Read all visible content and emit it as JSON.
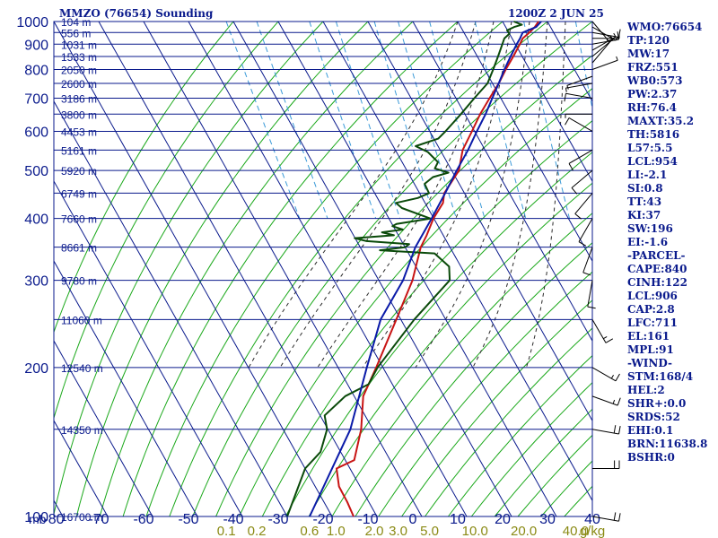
{
  "header": {
    "station": "MMZO (76654) Sounding",
    "time": "1200Z  2 JUN 25"
  },
  "colors": {
    "grid": "#0a1a8c",
    "dry_adiabat": "#1aa81a",
    "moist_adiabat": "#2a2a2a",
    "mixing_ratio": "#3a9ad8",
    "temperature": "#c81414",
    "dewpoint": "#0a4a0a",
    "parcel": "#0a1aa8",
    "text": "#0a1a8c",
    "mixing_label": "#8a8a14"
  },
  "params": [
    "WMO:76654",
    "TP:120",
    "MW:17",
    "FRZ:551",
    "WB0:573",
    "PW:2.37",
    "RH:76.4",
    "MAXT:35.2",
    "TH:5816",
    "L57:5.5",
    "LCL:954",
    "LI:-2.1",
    "SI:0.8",
    "TT:43",
    "KI:37",
    "SW:196",
    "EI:-1.6",
    "-PARCEL-",
    "CAPE:840",
    "CINH:122",
    "LCL:906",
    "CAP:2.8",
    "LFC:711",
    "EL:161",
    "MPL:91",
    "-WIND-",
    "STM:168/4",
    "HEL:2",
    "SHR+:0.0",
    "SRDS:52",
    "EHI:0.1",
    "BRN:11638.8",
    "BSHR:0"
  ],
  "chart_data": {
    "type": "line",
    "title": "MMZO (76654) Sounding",
    "pressure_axis": {
      "label": "mb",
      "scale": "log",
      "range": [
        1000,
        100
      ],
      "levels": [
        1000,
        900,
        800,
        700,
        600,
        500,
        400,
        300,
        200,
        100
      ]
    },
    "secondary_levels": [
      {
        "p": 1000,
        "label": "104 m"
      },
      {
        "p": 950,
        "label": "556 m"
      },
      {
        "p": 900,
        "label": "1031 m"
      },
      {
        "p": 850,
        "label": "1533 m"
      },
      {
        "p": 800,
        "label": "2050 m"
      },
      {
        "p": 750,
        "label": "2600 m"
      },
      {
        "p": 700,
        "label": "3186 m"
      },
      {
        "p": 650,
        "label": "3800 m"
      },
      {
        "p": 600,
        "label": "4453 m"
      },
      {
        "p": 550,
        "label": "5161 m"
      },
      {
        "p": 500,
        "label": "5920 m"
      },
      {
        "p": 450,
        "label": "6749 m"
      },
      {
        "p": 400,
        "label": "7660 m"
      },
      {
        "p": 350,
        "label": "8661 m"
      },
      {
        "p": 300,
        "label": "9780 m"
      },
      {
        "p": 250,
        "label": "11060 m"
      },
      {
        "p": 200,
        "label": "12540 m"
      },
      {
        "p": 150,
        "label": "14350 m"
      },
      {
        "p": 100,
        "label": "16700 m"
      }
    ],
    "temperature_axis": {
      "label": "C",
      "range": [
        -80,
        40
      ],
      "ticks": [
        -80,
        -70,
        -60,
        -50,
        -40,
        -30,
        -20,
        -10,
        0,
        10,
        20,
        30,
        40
      ]
    },
    "mixing_ratio_labels": [
      "0.1",
      "0.2",
      "0.6",
      "1.0",
      "2.0",
      "3.0",
      "5.0",
      "10.0",
      "20.0",
      "40.0",
      "g/kg"
    ],
    "mixing_ratio_values": [
      0.1,
      0.2,
      0.6,
      1,
      2,
      3,
      5,
      10,
      20,
      40
    ],
    "series": [
      {
        "key": "temperature",
        "points": [
          [
            1000,
            28
          ],
          [
            975,
            26.5
          ],
          [
            950,
            24.6
          ],
          [
            925,
            22.4
          ],
          [
            900,
            21
          ],
          [
            850,
            18
          ],
          [
            800,
            14.7
          ],
          [
            750,
            11.4
          ],
          [
            700,
            7.5
          ],
          [
            650,
            3.4
          ],
          [
            600,
            -0.6
          ],
          [
            550,
            -5
          ],
          [
            500,
            -8.4
          ],
          [
            450,
            -14.5
          ],
          [
            430,
            -16
          ],
          [
            400,
            -20.1
          ],
          [
            370,
            -23.7
          ],
          [
            350,
            -26.5
          ],
          [
            320,
            -30
          ],
          [
            300,
            -32.5
          ],
          [
            250,
            -41
          ],
          [
            200,
            -51.5
          ],
          [
            175,
            -58
          ],
          [
            150,
            -62.6
          ],
          [
            130,
            -68
          ],
          [
            125,
            -73
          ],
          [
            115,
            -74.7
          ],
          [
            107,
            -74.8
          ],
          [
            100,
            -75.2
          ]
        ]
      },
      {
        "key": "dewpoint",
        "points": [
          [
            1000,
            22.5
          ],
          [
            985,
            23.9
          ],
          [
            975,
            21.9
          ],
          [
            960,
            19.9
          ],
          [
            945,
            20
          ],
          [
            925,
            18.3
          ],
          [
            900,
            17.1
          ],
          [
            850,
            14.6
          ],
          [
            800,
            11.9
          ],
          [
            750,
            8.9
          ],
          [
            700,
            4.1
          ],
          [
            650,
            -0.9
          ],
          [
            600,
            -6.5
          ],
          [
            580,
            -9
          ],
          [
            560,
            -15
          ],
          [
            545,
            -13
          ],
          [
            520,
            -12
          ],
          [
            505,
            -13.5
          ],
          [
            495,
            -11
          ],
          [
            485,
            -15
          ],
          [
            470,
            -17.7
          ],
          [
            450,
            -17.9
          ],
          [
            440,
            -21
          ],
          [
            430,
            -26.5
          ],
          [
            420,
            -25.8
          ],
          [
            400,
            -20.8
          ],
          [
            390,
            -29
          ],
          [
            386,
            -30.2
          ],
          [
            380,
            -28.3
          ],
          [
            375,
            -33.3
          ],
          [
            370,
            -31
          ],
          [
            365,
            -40.1
          ],
          [
            360,
            -37.8
          ],
          [
            355,
            -28.7
          ],
          [
            350,
            -30
          ],
          [
            345,
            -36
          ],
          [
            340,
            -24.2
          ],
          [
            320,
            -22.6
          ],
          [
            300,
            -24.2
          ],
          [
            250,
            -37
          ],
          [
            200,
            -51.2
          ],
          [
            185,
            -55.3
          ],
          [
            175,
            -62
          ],
          [
            160,
            -69
          ],
          [
            150,
            -70.2
          ],
          [
            135,
            -74.5
          ],
          [
            125,
            -80
          ],
          [
            100,
            -90
          ]
        ]
      },
      {
        "key": "parcel",
        "points": [
          [
            1000,
            28.6
          ],
          [
            975,
            26.8
          ],
          [
            950,
            23.1
          ],
          [
            925,
            21.8
          ],
          [
            900,
            20.3
          ],
          [
            850,
            17.4
          ],
          [
            800,
            14.4
          ],
          [
            750,
            11.4
          ],
          [
            700,
            8.1
          ],
          [
            650,
            4.6
          ],
          [
            600,
            0.5
          ],
          [
            550,
            -3.8
          ],
          [
            500,
            -8.9
          ],
          [
            450,
            -14.3
          ],
          [
            400,
            -20.5
          ],
          [
            350,
            -27.7
          ],
          [
            300,
            -34.6
          ],
          [
            250,
            -44.5
          ],
          [
            200,
            -53.6
          ],
          [
            150,
            -65
          ],
          [
            100,
            -85
          ]
        ]
      }
    ],
    "winds": [
      {
        "p": 1000,
        "dir": 140,
        "spd": 5
      },
      {
        "p": 975,
        "dir": 120,
        "spd": 5
      },
      {
        "p": 950,
        "dir": 100,
        "spd": 10
      },
      {
        "p": 925,
        "dir": 90,
        "spd": 5
      },
      {
        "p": 900,
        "dir": 80,
        "spd": 10
      },
      {
        "p": 875,
        "dir": 60,
        "spd": 5
      },
      {
        "p": 850,
        "dir": 50,
        "spd": 5
      },
      {
        "p": 825,
        "dir": 40,
        "spd": 5
      },
      {
        "p": 800,
        "dir": 70,
        "spd": 5
      },
      {
        "p": 775,
        "dir": 250,
        "spd": 5
      },
      {
        "p": 750,
        "dir": 260,
        "spd": 5
      },
      {
        "p": 700,
        "dir": 280,
        "spd": 10
      },
      {
        "p": 650,
        "dir": 270,
        "spd": 5
      },
      {
        "p": 600,
        "dir": 300,
        "spd": 10
      },
      {
        "p": 550,
        "dir": 240,
        "spd": 10
      },
      {
        "p": 500,
        "dir": 230,
        "spd": 10
      },
      {
        "p": 450,
        "dir": 220,
        "spd": 10
      },
      {
        "p": 400,
        "dir": 210,
        "spd": 10
      },
      {
        "p": 350,
        "dir": 200,
        "spd": 10
      },
      {
        "p": 300,
        "dir": 190,
        "spd": 10
      },
      {
        "p": 250,
        "dir": 150,
        "spd": 15
      },
      {
        "p": 200,
        "dir": 120,
        "spd": 15
      },
      {
        "p": 175,
        "dir": 110,
        "spd": 15
      },
      {
        "p": 150,
        "dir": 100,
        "spd": 20
      },
      {
        "p": 125,
        "dir": 90,
        "spd": 20
      },
      {
        "p": 100,
        "dir": 100,
        "spd": 20
      }
    ]
  }
}
